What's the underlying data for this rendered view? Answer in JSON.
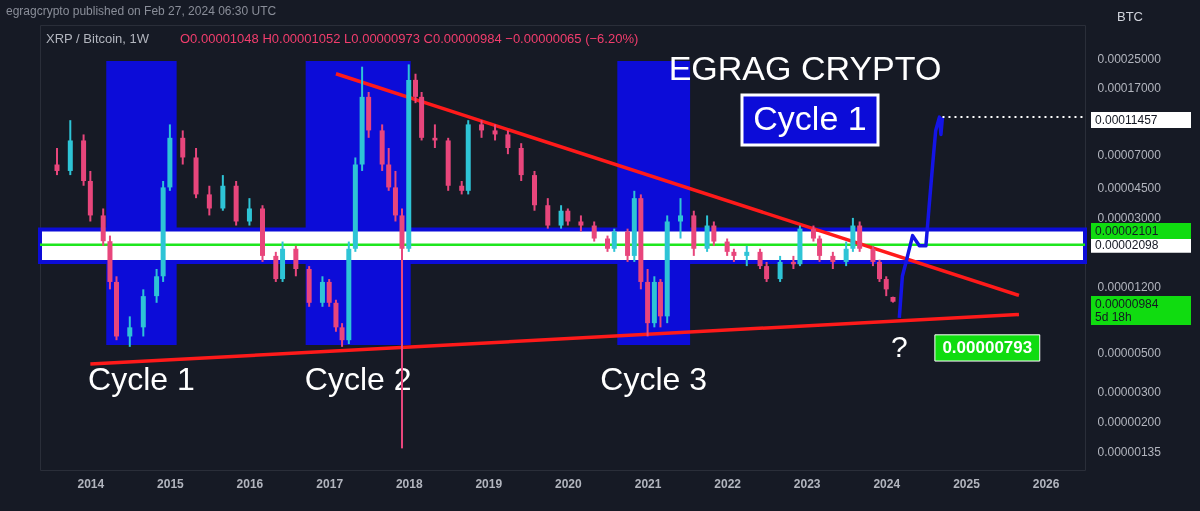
{
  "chart_data": {
    "type": "candlestick",
    "title": "XRP / Bitcoin, 1W",
    "subtitle": "O0.00001048 H0.00001052 L0.00000973 C0.00000984 −0.00000065 (−6.20%)",
    "ylabel": "BTC",
    "colors": [
      "#e8467c",
      "#2ec4d6",
      "#e8467c",
      "#e8467c",
      "#e8467c",
      "#e8467c",
      "#e8467c",
      "#2ec4d6",
      "#2ec4d6",
      "#2ec4d6",
      "#2ec4d6",
      "#2ec4d6",
      "#e8467c",
      "#e8467c",
      "#e8467c",
      "#2ec4d6",
      "#e8467c",
      "#2ec4d6",
      "#e8467c",
      "#e8467c",
      "#2ec4d6",
      "#e8467c",
      "#e8467c",
      "#2ec4d6",
      "#e8467c",
      "#e8467c",
      "#e8467c",
      "#2ec4d6",
      "#2ec4d6",
      "#2ec4d6",
      "#e8467c",
      "#e8467c",
      "#e8467c",
      "#e8467c",
      "#e8467c",
      "#2ec4d6",
      "#e8467c",
      "#e8467c",
      "#e8467c",
      "#e8467c",
      "#e8467c",
      "#2ec4d6",
      "#e8467c",
      "#e8467c",
      "#e8467c",
      "#e8467c",
      "#e8467c",
      "#e8467c",
      "#2ec4d6",
      "#e8467c",
      "#e8467c",
      "#e8467c",
      "#e8467c",
      "#2ec4d6",
      "#e8467c",
      "#2ec4d6",
      "#e8467c",
      "#e8467c",
      "#2ec4d6",
      "#e8467c",
      "#2ec4d6",
      "#2ec4d6",
      "#e8467c",
      "#2ec4d6",
      "#e8467c",
      "#e8467c",
      "#e8467c",
      "#2ec4d6",
      "#e8467c",
      "#e8467c",
      "#2ec4d6",
      "#e8467c",
      "#2ec4d6",
      "#e8467c",
      "#e8467c",
      "#e8467c",
      "#2ec4d6",
      "#2ec4d6",
      "#e8467c",
      "#e8467c",
      "#e8467c",
      "#e8467c",
      "#e8467c"
    ],
    "x": [
      "2013-08",
      "2013-10",
      "2013-12",
      "2014-01",
      "2014-03",
      "2014-04",
      "2014-05",
      "2014-07",
      "2014-09",
      "2014-11",
      "2014-12",
      "2015-01",
      "2015-03",
      "2015-05",
      "2015-07",
      "2015-09",
      "2015-11",
      "2016-01",
      "2016-03",
      "2016-05",
      "2016-06",
      "2016-08",
      "2016-10",
      "2016-12",
      "2017-01",
      "2017-02",
      "2017-03",
      "2017-04",
      "2017-05",
      "2017-06",
      "2017-07",
      "2017-09",
      "2017-10",
      "2017-11",
      "2017-12",
      "2018-01",
      "2018-02",
      "2018-03",
      "2018-05",
      "2018-07",
      "2018-09",
      "2018-10",
      "2018-12",
      "2019-02",
      "2019-04",
      "2019-06",
      "2019-08",
      "2019-10",
      "2019-12",
      "2020-01",
      "2020-03",
      "2020-05",
      "2020-07",
      "2020-08",
      "2020-10",
      "2020-11",
      "2020-12",
      "2021-01",
      "2021-02",
      "2021-03",
      "2021-04",
      "2021-06",
      "2021-08",
      "2021-10",
      "2021-11",
      "2022-01",
      "2022-02",
      "2022-04",
      "2022-06",
      "2022-07",
      "2022-09",
      "2022-11",
      "2022-12",
      "2023-02",
      "2023-03",
      "2023-05",
      "2023-07",
      "2023-08",
      "2023-09",
      "2023-11",
      "2023-12",
      "2024-01",
      "2024-02"
    ],
    "ohlc": [
      [
        6.1e-05,
        7.6e-05,
        5.3e-05,
        5.6e-05
      ],
      [
        5.6e-05,
        0.00011,
        5.3e-05,
        8.4e-05
      ],
      [
        8.4e-05,
        9.1e-05,
        4.6e-05,
        4.9e-05
      ],
      [
        4.9e-05,
        5.6e-05,
        2.86e-05,
        3.1e-05
      ],
      [
        3.1e-05,
        3.4e-05,
        2.07e-05,
        2.2e-05
      ],
      [
        2.2e-05,
        2.37e-05,
        1.16e-05,
        1.28e-05
      ],
      [
        1.28e-05,
        1.38e-05,
        5.9e-06,
        6.2e-06
      ],
      [
        6.2e-06,
        8.1e-06,
        5.4e-06,
        7e-06
      ],
      [
        7e-06,
        1.16e-05,
        6.2e-06,
        1.06e-05
      ],
      [
        1.06e-05,
        1.52e-05,
        9.7e-06,
        1.38e-05
      ],
      [
        1.38e-05,
        4.9e-05,
        1.28e-05,
        4.5e-05
      ],
      [
        4.5e-05,
        0.000104,
        4.3e-05,
        8.7e-05
      ],
      [
        8.7e-05,
        9.6e-05,
        6.1e-05,
        6.7e-05
      ],
      [
        6.7e-05,
        7.6e-05,
        3.9e-05,
        4.1e-05
      ],
      [
        4.1e-05,
        4.6e-05,
        3.1e-05,
        3.4e-05
      ],
      [
        3.4e-05,
        5.3e-05,
        3.3e-05,
        4.6e-05
      ],
      [
        4.6e-05,
        4.9e-05,
        2.71e-05,
        2.86e-05
      ],
      [
        2.86e-05,
        3.9e-05,
        2.71e-05,
        3.4e-05
      ],
      [
        3.4e-05,
        3.55e-05,
        1.67e-05,
        1.81e-05
      ],
      [
        1.81e-05,
        1.91e-05,
        1.28e-05,
        1.33e-05
      ],
      [
        1.33e-05,
        2.19e-05,
        1.28e-05,
        1.99e-05
      ],
      [
        1.99e-05,
        2.07e-05,
        1.38e-05,
        1.52e-05
      ],
      [
        1.52e-05,
        1.58e-05,
        9.2e-06,
        9.7e-06
      ],
      [
        9.7e-06,
        1.38e-05,
        9.2e-06,
        1.28e-05
      ],
      [
        1.28e-05,
        1.33e-05,
        9.2e-06,
        9.7e-06
      ],
      [
        9.7e-06,
        1.01e-05,
        6.6e-06,
        7e-06
      ],
      [
        7e-06,
        7.4e-06,
        5.4e-06,
        5.9e-06
      ],
      [
        5.9e-06,
        2.19e-05,
        5.6e-06,
        1.99e-05
      ],
      [
        1.99e-05,
        6.7e-05,
        1.91e-05,
        6.1e-05
      ],
      [
        6.1e-05,
        0.000224,
        5.6e-05,
        0.00015
      ],
      [
        0.00015,
        0.00016,
        8.7e-05,
        9.6e-05
      ],
      [
        9.6e-05,
        0.000104,
        5.6e-05,
        6.1e-05
      ],
      [
        6.1e-05,
        7.6e-05,
        4.3e-05,
        4.5e-05
      ],
      [
        4.5e-05,
        5.6e-05,
        2.86e-05,
        3.1e-05
      ],
      [
        3.1e-05,
        3.4e-05,
        1.4e-06,
        1.99e-05
      ],
      [
        1.99e-05,
        0.000231,
        1.91e-05,
        0.000188
      ],
      [
        0.000188,
        0.000204,
        0.000138,
        0.00015
      ],
      [
        0.00015,
        0.00016,
        8.4e-05,
        8.7e-05
      ],
      [
        8.7e-05,
        0.000104,
        7.6e-05,
        8.4e-05
      ],
      [
        8.4e-05,
        8.7e-05,
        4.3e-05,
        4.6e-05
      ],
      [
        4.6e-05,
        4.9e-05,
        4.1e-05,
        4.3e-05
      ],
      [
        4.3e-05,
        0.00011,
        4.1e-05,
        0.000104
      ],
      [
        0.000104,
        0.00011,
        8.7e-05,
        9.6e-05
      ],
      [
        9.6e-05,
        0.000104,
        8.4e-05,
        9.1e-05
      ],
      [
        9.1e-05,
        9.6e-05,
        7e-05,
        7.6e-05
      ],
      [
        7.6e-05,
        8.1e-05,
        4.9e-05,
        5.3e-05
      ],
      [
        5.3e-05,
        5.6e-05,
        3.3e-05,
        3.55e-05
      ],
      [
        3.55e-05,
        3.9e-05,
        2.6e-05,
        2.71e-05
      ],
      [
        2.71e-05,
        3.55e-05,
        2.6e-05,
        3.3e-05
      ],
      [
        3.3e-05,
        3.4e-05,
        2.71e-05,
        2.86e-05
      ],
      [
        2.86e-05,
        3.1e-05,
        2.5e-05,
        2.71e-05
      ],
      [
        2.71e-05,
        2.86e-05,
        2.19e-05,
        2.28e-05
      ],
      [
        2.28e-05,
        2.37e-05,
        1.91e-05,
        1.99e-05
      ],
      [
        1.99e-05,
        2.6e-05,
        1.91e-05,
        2.5e-05
      ],
      [
        2.5e-05,
        2.6e-05,
        1.67e-05,
        1.81e-05
      ],
      [
        1.81e-05,
        4.3e-05,
        1.67e-05,
        3.9e-05
      ],
      [
        3.9e-05,
        4.1e-05,
        1.16e-05,
        1.28e-05
      ],
      [
        1.28e-05,
        1.52e-05,
        6.2e-06,
        7.4e-06
      ],
      [
        7.4e-06,
        1.38e-05,
        7e-06,
        1.28e-05
      ],
      [
        1.28e-05,
        1.33e-05,
        7e-06,
        8.1e-06
      ],
      [
        8.1e-06,
        3.1e-05,
        7.4e-06,
        2.86e-05
      ],
      [
        2.86e-05,
        3.9e-05,
        2.28e-05,
        3.1e-05
      ],
      [
        3.1e-05,
        3.3e-05,
        1.81e-05,
        1.99e-05
      ],
      [
        1.99e-05,
        3.1e-05,
        1.91e-05,
        2.71e-05
      ],
      [
        2.71e-05,
        2.86e-05,
        2.07e-05,
        2.19e-05
      ],
      [
        2.19e-05,
        2.28e-05,
        1.81e-05,
        1.91e-05
      ],
      [
        1.91e-05,
        1.99e-05,
        1.67e-05,
        1.81e-05
      ],
      [
        1.81e-05,
        2.07e-05,
        1.58e-05,
        1.91e-05
      ],
      [
        1.91e-05,
        1.99e-05,
        1.52e-05,
        1.58e-05
      ],
      [
        1.58e-05,
        1.67e-05,
        1.28e-05,
        1.33e-05
      ],
      [
        1.33e-05,
        1.81e-05,
        1.28e-05,
        1.67e-05
      ],
      [
        1.67e-05,
        1.81e-05,
        1.52e-05,
        1.62e-05
      ],
      [
        1.62e-05,
        2.71e-05,
        1.58e-05,
        2.6e-05
      ],
      [
        2.6e-05,
        2.71e-05,
        2.19e-05,
        2.28e-05
      ],
      [
        2.28e-05,
        2.37e-05,
        1.67e-05,
        1.81e-05
      ],
      [
        1.81e-05,
        1.91e-05,
        1.52e-05,
        1.67e-05
      ],
      [
        1.67e-05,
        2.19e-05,
        1.58e-05,
        1.99e-05
      ],
      [
        1.99e-05,
        3e-05,
        1.91e-05,
        2.71e-05
      ],
      [
        2.71e-05,
        2.86e-05,
        1.91e-05,
        1.99e-05
      ],
      [
        1.99e-05,
        2.07e-05,
        1.58e-05,
        1.67e-05
      ],
      [
        1.67e-05,
        1.72e-05,
        1.28e-05,
        1.33e-05
      ],
      [
        1.33e-05,
        1.38e-05,
        1.06e-05,
        1.16e-05
      ],
      [
        1.048e-05,
        1.052e-05,
        9.73e-06,
        9.84e-06
      ]
    ],
    "series": [
      {
        "type": "line",
        "color": "#ff1a1a",
        "line_style": "solid",
        "x": [
          "2017-02",
          "2025-09"
        ],
        "values": [
          0.000204,
          1.07e-05
        ]
      },
      {
        "type": "line",
        "color": "#ff1a1a",
        "line_style": "solid",
        "x": [
          "2014-01",
          "2025-09"
        ],
        "values": [
          4.3e-06,
          8.3e-06
        ]
      },
      {
        "type": "line",
        "color": "#1414e6",
        "line_style": "solid",
        "x": [
          "2024-03-01",
          "2024-03-15",
          "2024-04-01",
          "2024-05-01",
          "2024-06-01",
          "2024-07-01",
          "2024-07-15",
          "2024-08-01",
          "2024-08-15",
          "2024-09-01",
          "2024-09-08",
          "2024-09-15"
        ],
        "values": [
          7.93e-06,
          1.38e-05,
          1.67e-05,
          2.37e-05,
          2.07e-05,
          2.07e-05,
          3.4e-05,
          6.1e-05,
          9.6e-05,
          0.0001146,
          9.1e-05,
          0.00011457
        ]
      },
      {
        "type": "line",
        "color": "#ffffff",
        "line_style": "dotted",
        "x": [
          "2024-09-15",
          "2026-07-01"
        ],
        "values": [
          0.00011457,
          0.00011457
        ]
      }
    ],
    "bands": [
      {
        "axis": "x",
        "from": "2014-03-15",
        "to": "2015-02-01",
        "label": "Cycle 1",
        "color": "#0c0cd8"
      },
      {
        "axis": "x",
        "from": "2016-09-15",
        "to": "2018-01-10",
        "label": "Cycle 2",
        "color": "#0c0cd8"
      },
      {
        "axis": "x",
        "from": "2020-08-15",
        "to": "2021-07-15",
        "label": "Cycle 3",
        "color": "#0c0cd8"
      },
      {
        "axis": "y",
        "from": 1.67e-05,
        "to": 2.57e-05,
        "color": "#ffffff"
      }
    ],
    "ref_lines": [
      {
        "axis": "y",
        "value": 2.098e-05,
        "label": "0.00002098",
        "color": "#1ee61e"
      }
    ],
    "annotations": [
      "egragcrypto published on Feb 27, 2024 06:30 UTC",
      "EGRAG CRYPTO",
      "Cycle 1",
      {
        "text": "?",
        "x": "2024-03-01",
        "y": 7.93e-06
      },
      {
        "text": "0.00000793",
        "x": "2024-03-01",
        "y": 7.93e-06
      },
      "0.00011457",
      "0.00002101",
      "0.00000984",
      "5d 18h"
    ],
    "xlim": [
      "2013-05-15",
      "2026-07-01"
    ],
    "xticks": [
      "2014",
      "2015",
      "2016",
      "2017",
      "2018",
      "2019",
      "2020",
      "2021",
      "2022",
      "2023",
      "2024",
      "2025",
      "2026"
    ],
    "ylim": [
      1.05e-06,
      0.00039
    ],
    "yticks": [
      {
        "value": 0.00025,
        "label": "0.00025000"
      },
      {
        "value": 0.00017,
        "label": "0.00017000"
      },
      {
        "value": 7e-05,
        "label": "0.00007000"
      },
      {
        "value": 4.5e-05,
        "label": "0.00004500"
      },
      {
        "value": 3e-05,
        "label": "0.00003000"
      },
      {
        "value": 1.2e-05,
        "label": "0.00001200"
      },
      {
        "value": 5e-06,
        "label": "0.00000500"
      },
      {
        "value": 3e-06,
        "label": "0.00000300"
      },
      {
        "value": 2e-06,
        "label": "0.00000200"
      },
      {
        "value": 1.35e-06,
        "label": "0.00000135"
      }
    ],
    "log": "y"
  }
}
